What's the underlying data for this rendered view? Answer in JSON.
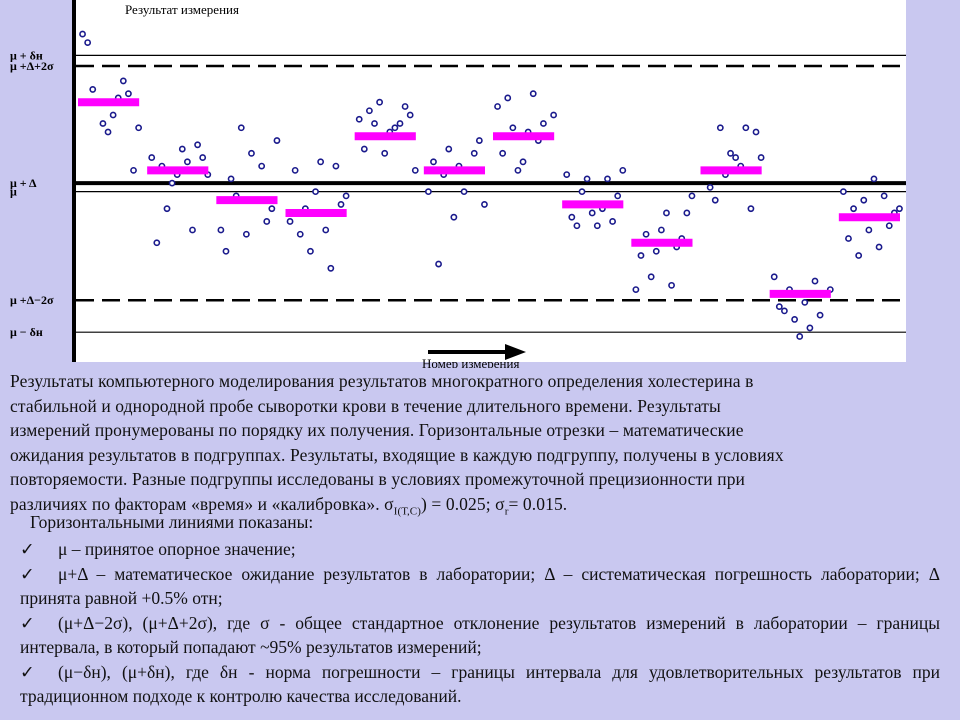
{
  "chart_data": {
    "type": "scatter",
    "title": "Результат измерения",
    "xlabel": "Номер измерения",
    "ylabel": "",
    "colors": {
      "points": "#1a1a8c",
      "means": "#ff00ff",
      "lines": "#000000",
      "background": "#ffffff"
    },
    "ylim": [
      -4.2,
      4.3
    ],
    "reference_lines": [
      {
        "label": "μ + δн",
        "value": 3.0,
        "style": "solid-thin"
      },
      {
        "label": "μ +Δ+2σ",
        "value": 2.75,
        "style": "dashed"
      },
      {
        "label": "μ + Δ",
        "value": 0.0,
        "style": "solid-thick"
      },
      {
        "label": "μ",
        "value": -0.2,
        "style": "solid-thin"
      },
      {
        "label": "μ +Δ−2σ",
        "value": -2.75,
        "style": "dashed"
      },
      {
        "label": "μ − δн",
        "value": -3.5,
        "style": "solid-thin"
      }
    ],
    "subgroups": [
      {
        "mean": 1.9,
        "values": [
          3.5,
          3.3,
          2.2,
          1.9,
          1.4,
          1.2,
          1.6,
          2.0,
          2.4,
          2.1,
          0.3,
          1.3
        ]
      },
      {
        "mean": 0.3,
        "values": [
          0.6,
          -1.4,
          0.4,
          -0.6,
          0.0,
          0.2,
          0.8,
          0.5,
          -1.1,
          0.9,
          0.6,
          0.2
        ]
      },
      {
        "mean": -0.4,
        "values": [
          -1.1,
          -1.6,
          0.1,
          -0.3,
          1.3,
          -1.2,
          0.7,
          -0.4,
          0.4,
          -0.9,
          -0.6,
          1.0
        ]
      },
      {
        "mean": -0.7,
        "values": [
          -0.9,
          0.3,
          -1.2,
          -0.6,
          -1.6,
          -0.2,
          0.5,
          -1.1,
          -2.0,
          0.4,
          -0.5,
          -0.3
        ]
      },
      {
        "mean": 1.1,
        "values": [
          1.5,
          0.8,
          1.7,
          1.4,
          1.9,
          0.7,
          1.2,
          1.3,
          1.4,
          1.8,
          1.6,
          0.3
        ]
      },
      {
        "mean": 0.3,
        "values": [
          -0.2,
          0.5,
          -1.9,
          0.2,
          0.8,
          -0.8,
          0.4,
          -0.2,
          0.3,
          0.7,
          1.0,
          -0.5
        ]
      },
      {
        "mean": 1.1,
        "values": [
          1.8,
          0.7,
          2.0,
          1.3,
          0.3,
          0.5,
          1.2,
          2.1,
          1.0,
          1.4,
          1.1,
          1.6
        ]
      },
      {
        "mean": -0.5,
        "values": [
          0.2,
          -0.8,
          -1.0,
          -0.2,
          0.1,
          -0.7,
          -1.0,
          -0.6,
          0.1,
          -0.9,
          -0.3,
          0.3
        ]
      },
      {
        "mean": -1.4,
        "values": [
          -2.5,
          -1.7,
          -1.2,
          -2.2,
          -1.6,
          -1.1,
          -0.7,
          -2.4,
          -1.5,
          -1.3,
          -0.7,
          -0.3
        ]
      },
      {
        "mean": 0.3,
        "values": [
          0.3,
          -0.1,
          -0.4,
          1.3,
          0.2,
          0.7,
          0.6,
          0.4,
          1.3,
          -0.6,
          1.2,
          0.6
        ]
      },
      {
        "mean": -2.6,
        "values": [
          -2.2,
          -2.9,
          -3.0,
          -2.5,
          -3.2,
          -3.6,
          -2.8,
          -3.4,
          -2.3,
          -3.1,
          -2.6,
          -2.5
        ]
      },
      {
        "mean": -0.8,
        "values": [
          -0.2,
          -1.3,
          -0.6,
          -1.7,
          -0.4,
          -1.1,
          0.1,
          -1.5,
          -0.3,
          -1.0,
          -0.7,
          -0.6
        ]
      }
    ],
    "grid": false,
    "legend": "none"
  },
  "caption": {
    "line1": "Результаты компьютерного моделирования результатов многократного определения холестерина в",
    "line2": "стабильной и однородной пробе сыворотки крови в течение длительного времени. Результаты",
    "line3": "измерений пронумерованы по порядку их получения. Горизонтальные отрезки – математические",
    "line4": "ожидания результатов в подгруппах. Результаты, входящие в каждую подгруппу, получены в условиях",
    "line5": "повторяемости. Разные подгруппы исследованы в условиях промежуточной прецизионности при",
    "line6_start": "различиях по факторам «время» и «калибровка». σ",
    "line6_sub1": "I(Т,С)",
    "line6_mid": ") = 0.025; σ",
    "line6_sub2": "r",
    "line6_end": "= 0.015."
  },
  "legend": {
    "title": "Горизонтальными линиями показаны:",
    "check": "✓",
    "items": [
      "μ – принятое опорное значение;",
      "μ+Δ – математическое ожидание результатов в лаборатории; Δ – систематическая погрешность лаборатории; Δ принята равной +0.5% отн;",
      "(μ+Δ−2σ), (μ+Δ+2σ), где σ - общее стандартное отклонение результатов измерений в лаборатории – границы интервала, в который попадают ~95% результатов измерений;",
      "(μ−δн), (μ+δн), где δн - норма погрешности – границы интервала для удовлетворительных результатов при традиционном подходе к контролю качества исследований."
    ]
  }
}
